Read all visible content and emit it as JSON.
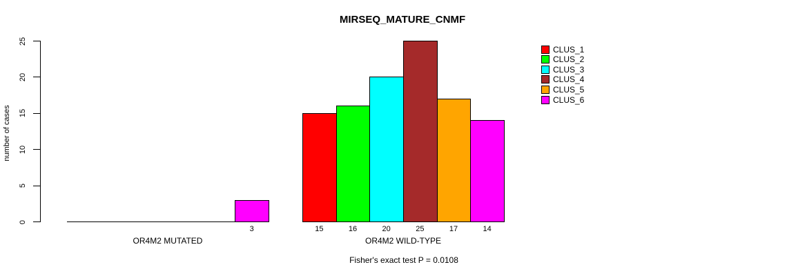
{
  "title": "MIRSEQ_MATURE_CNMF",
  "chart_data": {
    "type": "bar",
    "title": "MIRSEQ_MATURE_CNMF",
    "xlabel": "",
    "ylabel": "number of cases",
    "ylim": [
      0,
      25
    ],
    "yticks": [
      0,
      5,
      10,
      15,
      20,
      25
    ],
    "grid": false,
    "legend_position": "top-right",
    "legend_entries": [
      "CLUS_1",
      "CLUS_2",
      "CLUS_3",
      "CLUS_4",
      "CLUS_5",
      "CLUS_6"
    ],
    "colors": [
      "#FF0000",
      "#00FF00",
      "#00FFFF",
      "#A52A2A",
      "#FFA500",
      "#FF00FF"
    ],
    "categories": [
      "OR4M2 MUTATED",
      "OR4M2 WILD-TYPE"
    ],
    "series": [
      {
        "name": "CLUS_1",
        "values": [
          0,
          15
        ]
      },
      {
        "name": "CLUS_2",
        "values": [
          0,
          16
        ]
      },
      {
        "name": "CLUS_3",
        "values": [
          0,
          20
        ]
      },
      {
        "name": "CLUS_4",
        "values": [
          0,
          25
        ]
      },
      {
        "name": "CLUS_5",
        "values": [
          0,
          17
        ]
      },
      {
        "name": "CLUS_6",
        "values": [
          3,
          14
        ]
      }
    ],
    "groups": [
      {
        "label": "OR4M2 MUTATED",
        "values": [
          0,
          0,
          0,
          0,
          0,
          3
        ],
        "shown_value_labels": [
          "3"
        ]
      },
      {
        "label": "OR4M2 WILD-TYPE",
        "values": [
          15,
          16,
          20,
          25,
          17,
          14
        ],
        "shown_value_labels": [
          "15",
          "16",
          "20",
          "25",
          "17",
          "14"
        ]
      }
    ],
    "annotation": "Fisher's exact test P = 0.0108"
  }
}
